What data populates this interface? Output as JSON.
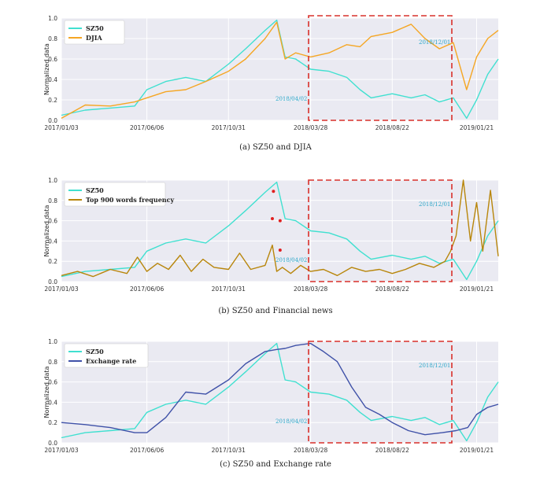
{
  "colors": {
    "sz50": "#40e0d0",
    "djia": "#f5a623",
    "news": "#b8860b",
    "exchange": "#3f51a8",
    "box": "#d9302b",
    "marker": "#e02020",
    "annot": "#2aa6c8"
  },
  "chart_data": [
    {
      "type": "line",
      "caption": "(a)  SZ50 and DJIA",
      "ylabel": "Normalized data",
      "ylim": [
        0,
        1
      ],
      "yticks": [
        "0.0",
        "0.2",
        "0.4",
        "0.6",
        "0.8",
        "1.0"
      ],
      "xticks": [
        "2017/01/03",
        "2017/06/06",
        "2017/10/31",
        "2018/03/28",
        "2018/08/22",
        "2019/01/21"
      ],
      "x_range": [
        "2017/01/03",
        "2019/03/01"
      ],
      "grid": true,
      "legend_position": "top-left",
      "series": [
        {
          "name": "SZ50",
          "color": "#40e0d0",
          "x": [
            "2017/01/03",
            "2017/02/15",
            "2017/04/01",
            "2017/05/15",
            "2017/06/06",
            "2017/07/10",
            "2017/08/15",
            "2017/09/20",
            "2017/10/31",
            "2017/12/01",
            "2018/01/05",
            "2018/01/26",
            "2018/02/10",
            "2018/03/01",
            "2018/03/28",
            "2018/04/30",
            "2018/06/01",
            "2018/06/25",
            "2018/07/15",
            "2018/08/22",
            "2018/09/25",
            "2018/10/20",
            "2018/11/15",
            "2018/12/10",
            "2019/01/03",
            "2019/01/21",
            "2019/02/10",
            "2019/03/01"
          ],
          "values": [
            0.05,
            0.1,
            0.12,
            0.14,
            0.3,
            0.38,
            0.42,
            0.38,
            0.55,
            0.7,
            0.88,
            0.98,
            0.62,
            0.6,
            0.5,
            0.48,
            0.42,
            0.3,
            0.22,
            0.26,
            0.22,
            0.25,
            0.18,
            0.22,
            0.02,
            0.2,
            0.45,
            0.6
          ]
        },
        {
          "name": "DJIA",
          "color": "#f5a623",
          "x": [
            "2017/01/03",
            "2017/02/15",
            "2017/04/01",
            "2017/05/15",
            "2017/06/06",
            "2017/07/10",
            "2017/08/15",
            "2017/09/20",
            "2017/10/31",
            "2017/12/01",
            "2018/01/05",
            "2018/01/26",
            "2018/02/10",
            "2018/03/01",
            "2018/03/28",
            "2018/04/30",
            "2018/06/01",
            "2018/06/25",
            "2018/07/15",
            "2018/08/22",
            "2018/09/25",
            "2018/10/20",
            "2018/11/15",
            "2018/12/10",
            "2019/01/03",
            "2019/01/21",
            "2019/02/10",
            "2019/03/01"
          ],
          "values": [
            0.02,
            0.15,
            0.14,
            0.18,
            0.22,
            0.28,
            0.3,
            0.38,
            0.48,
            0.6,
            0.8,
            0.96,
            0.6,
            0.66,
            0.62,
            0.66,
            0.74,
            0.72,
            0.82,
            0.86,
            0.94,
            0.8,
            0.7,
            0.76,
            0.3,
            0.62,
            0.8,
            0.88
          ]
        }
      ],
      "annotations": [
        "2018/04/02",
        "2018/12/01"
      ]
    },
    {
      "type": "line",
      "caption": "(b)  SZ50 and Financial news",
      "ylabel": "Normalized data",
      "ylim": [
        0,
        1
      ],
      "yticks": [
        "0.0",
        "0.2",
        "0.4",
        "0.6",
        "0.8",
        "1.0"
      ],
      "xticks": [
        "2017/01/03",
        "2017/06/06",
        "2017/10/31",
        "2018/03/28",
        "2018/08/22",
        "2019/01/21"
      ],
      "x_range": [
        "2017/01/03",
        "2019/03/01"
      ],
      "grid": true,
      "legend_position": "top-left",
      "series": [
        {
          "name": "SZ50",
          "color": "#40e0d0",
          "x": [
            "2017/01/03",
            "2017/02/15",
            "2017/04/01",
            "2017/05/15",
            "2017/06/06",
            "2017/07/10",
            "2017/08/15",
            "2017/09/20",
            "2017/10/31",
            "2017/12/01",
            "2018/01/05",
            "2018/01/26",
            "2018/02/10",
            "2018/03/01",
            "2018/03/28",
            "2018/04/30",
            "2018/06/01",
            "2018/06/25",
            "2018/07/15",
            "2018/08/22",
            "2018/09/25",
            "2018/10/20",
            "2018/11/15",
            "2018/12/10",
            "2019/01/03",
            "2019/01/21",
            "2019/02/10",
            "2019/03/01"
          ],
          "values": [
            0.05,
            0.1,
            0.12,
            0.14,
            0.3,
            0.38,
            0.42,
            0.38,
            0.55,
            0.7,
            0.88,
            0.98,
            0.62,
            0.6,
            0.5,
            0.48,
            0.42,
            0.3,
            0.22,
            0.26,
            0.22,
            0.25,
            0.18,
            0.22,
            0.02,
            0.2,
            0.45,
            0.6
          ]
        },
        {
          "name": "Top 900 words frequency",
          "color": "#b8860b",
          "x": [
            "2017/01/03",
            "2017/02/01",
            "2017/03/01",
            "2017/04/01",
            "2017/05/01",
            "2017/05/20",
            "2017/06/06",
            "2017/06/25",
            "2017/07/15",
            "2017/08/05",
            "2017/08/25",
            "2017/09/15",
            "2017/10/05",
            "2017/10/31",
            "2017/11/20",
            "2017/12/10",
            "2018/01/05",
            "2018/01/18",
            "2018/01/26",
            "2018/02/05",
            "2018/02/20",
            "2018/03/10",
            "2018/03/28",
            "2018/04/20",
            "2018/05/15",
            "2018/06/10",
            "2018/07/05",
            "2018/07/30",
            "2018/08/22",
            "2018/09/15",
            "2018/10/10",
            "2018/11/05",
            "2018/11/25",
            "2018/12/05",
            "2018/12/15",
            "2018/12/28",
            "2019/01/10",
            "2019/01/21",
            "2019/02/01",
            "2019/02/15",
            "2019/03/01"
          ],
          "values": [
            0.06,
            0.1,
            0.05,
            0.12,
            0.08,
            0.24,
            0.1,
            0.18,
            0.12,
            0.26,
            0.1,
            0.22,
            0.14,
            0.12,
            0.28,
            0.12,
            0.16,
            0.36,
            0.1,
            0.14,
            0.08,
            0.16,
            0.1,
            0.12,
            0.06,
            0.14,
            0.1,
            0.12,
            0.08,
            0.12,
            0.18,
            0.14,
            0.2,
            0.3,
            0.45,
            1.0,
            0.4,
            0.78,
            0.3,
            0.9,
            0.25
          ]
        }
      ],
      "markers": [
        {
          "x": "2018/01/20",
          "y": 0.89
        },
        {
          "x": "2018/01/18",
          "y": 0.62
        },
        {
          "x": "2018/02/01",
          "y": 0.6
        },
        {
          "x": "2018/02/01",
          "y": 0.31
        }
      ],
      "annotations": [
        "2018/04/02",
        "2018/12/01"
      ]
    },
    {
      "type": "line",
      "caption": "(c)  SZ50 and Exchange rate",
      "ylabel": "Normalized data",
      "ylim": [
        0,
        1
      ],
      "yticks": [
        "0.0",
        "0.2",
        "0.4",
        "0.6",
        "0.8",
        "1.0"
      ],
      "xticks": [
        "2017/01/03",
        "2017/06/06",
        "2017/10/31",
        "2018/03/28",
        "2018/08/22",
        "2019/01/21"
      ],
      "x_range": [
        "2017/01/03",
        "2019/03/01"
      ],
      "grid": true,
      "legend_position": "top-left",
      "series": [
        {
          "name": "SZ50",
          "color": "#40e0d0",
          "x": [
            "2017/01/03",
            "2017/02/15",
            "2017/04/01",
            "2017/05/15",
            "2017/06/06",
            "2017/07/10",
            "2017/08/15",
            "2017/09/20",
            "2017/10/31",
            "2017/12/01",
            "2018/01/05",
            "2018/01/26",
            "2018/02/10",
            "2018/03/01",
            "2018/03/28",
            "2018/04/30",
            "2018/06/01",
            "2018/06/25",
            "2018/07/15",
            "2018/08/22",
            "2018/09/25",
            "2018/10/20",
            "2018/11/15",
            "2018/12/10",
            "2019/01/03",
            "2019/01/21",
            "2019/02/10",
            "2019/03/01"
          ],
          "values": [
            0.05,
            0.1,
            0.12,
            0.14,
            0.3,
            0.38,
            0.42,
            0.38,
            0.55,
            0.7,
            0.88,
            0.98,
            0.62,
            0.6,
            0.5,
            0.48,
            0.42,
            0.3,
            0.22,
            0.26,
            0.22,
            0.25,
            0.18,
            0.22,
            0.02,
            0.2,
            0.45,
            0.6
          ]
        },
        {
          "name": "Exchange rate",
          "color": "#3f51a8",
          "x": [
            "2017/01/03",
            "2017/02/15",
            "2017/04/01",
            "2017/05/15",
            "2017/06/06",
            "2017/07/10",
            "2017/08/15",
            "2017/09/20",
            "2017/10/31",
            "2017/12/01",
            "2018/01/05",
            "2018/01/26",
            "2018/02/10",
            "2018/03/01",
            "2018/03/28",
            "2018/04/20",
            "2018/05/15",
            "2018/06/10",
            "2018/07/05",
            "2018/07/30",
            "2018/08/22",
            "2018/09/20",
            "2018/10/20",
            "2018/11/20",
            "2018/12/15",
            "2019/01/05",
            "2019/01/21",
            "2019/02/10",
            "2019/03/01"
          ],
          "values": [
            0.2,
            0.18,
            0.15,
            0.1,
            0.1,
            0.25,
            0.5,
            0.48,
            0.62,
            0.78,
            0.9,
            0.92,
            0.93,
            0.96,
            0.98,
            0.9,
            0.8,
            0.55,
            0.35,
            0.28,
            0.2,
            0.12,
            0.08,
            0.1,
            0.12,
            0.15,
            0.28,
            0.35,
            0.38
          ]
        }
      ],
      "annotations": [
        "2018/04/02",
        "2018/12/01"
      ]
    }
  ]
}
